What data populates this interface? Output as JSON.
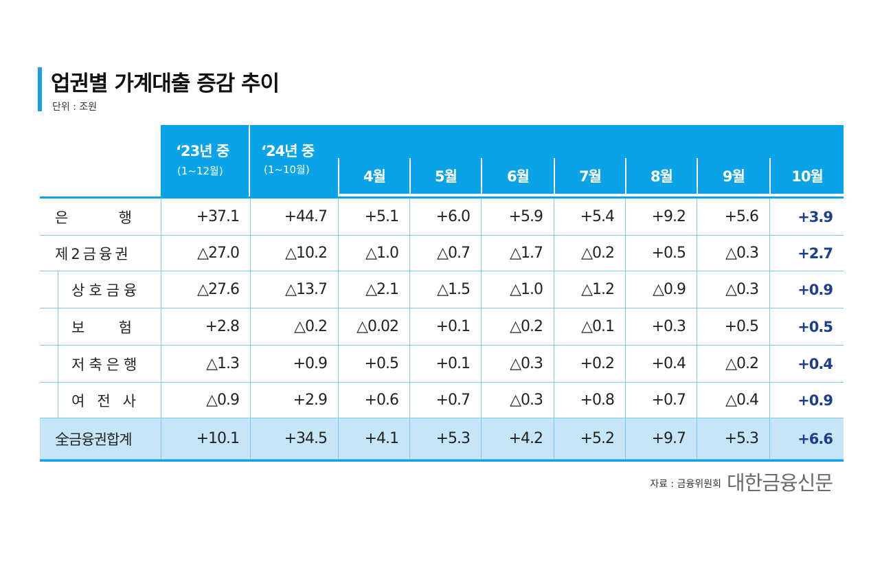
{
  "title": "업권별 가계대출 증감 추이",
  "unit": "단위 : 조원",
  "source": "자료 : 금융위원회",
  "press": "대한금융신문",
  "chart_data": {
    "type": "table",
    "columns": [
      {
        "label": "‘23년 중",
        "sub": "(1~12월)"
      },
      {
        "label": "‘24년 중",
        "sub": "(1~10월)"
      },
      {
        "label": "4월"
      },
      {
        "label": "5월"
      },
      {
        "label": "6월"
      },
      {
        "label": "7월"
      },
      {
        "label": "8월"
      },
      {
        "label": "9월"
      },
      {
        "label": "10월"
      }
    ],
    "rows": [
      {
        "label": "은 행",
        "values": [
          "+37.1",
          "+44.7",
          "+5.1",
          "+6.0",
          "+5.9",
          "+5.4",
          "+9.2",
          "+5.6",
          "+3.9"
        ]
      },
      {
        "label": "제2금융권",
        "values": [
          "△27.0",
          "△10.2",
          "△1.0",
          "△0.7",
          "△1.7",
          "△0.2",
          "+0.5",
          "△0.3",
          "+2.7"
        ]
      },
      {
        "label": "상호금융",
        "values": [
          "△27.6",
          "△13.7",
          "△2.1",
          "△1.5",
          "△1.0",
          "△1.2",
          "△0.9",
          "△0.3",
          "+0.9"
        ]
      },
      {
        "label": "보 험",
        "values": [
          "+2.8",
          "△0.2",
          "△0.02",
          "+0.1",
          "△0.2",
          "△0.1",
          "+0.3",
          "+0.5",
          "+0.5"
        ]
      },
      {
        "label": "저축은행",
        "values": [
          "△1.3",
          "+0.9",
          "+0.5",
          "+0.1",
          "△0.3",
          "+0.2",
          "+0.4",
          "△0.2",
          "+0.4"
        ]
      },
      {
        "label": "여전사",
        "values": [
          "△0.9",
          "+2.9",
          "+0.6",
          "+0.7",
          "△0.3",
          "+0.8",
          "+0.7",
          "△0.4",
          "+0.9"
        ]
      },
      {
        "label": "全금융권합계",
        "values": [
          "+10.1",
          "+34.5",
          "+4.1",
          "+5.3",
          "+4.2",
          "+5.2",
          "+9.7",
          "+5.3",
          "+6.6"
        ]
      }
    ]
  },
  "colors": {
    "header": "#0ba3e8",
    "total_row": "#c6e6f7",
    "latest_value": "#1a3f8c"
  }
}
